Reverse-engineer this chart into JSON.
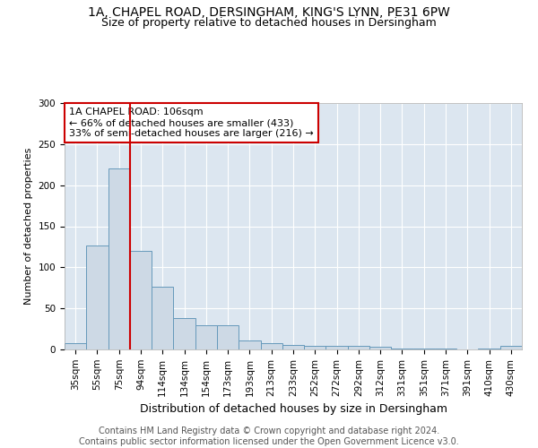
{
  "title_line1": "1A, CHAPEL ROAD, DERSINGHAM, KING'S LYNN, PE31 6PW",
  "title_line2": "Size of property relative to detached houses in Dersingham",
  "xlabel": "Distribution of detached houses by size in Dersingham",
  "ylabel": "Number of detached properties",
  "categories": [
    "35sqm",
    "55sqm",
    "75sqm",
    "94sqm",
    "114sqm",
    "134sqm",
    "154sqm",
    "173sqm",
    "193sqm",
    "213sqm",
    "233sqm",
    "252sqm",
    "272sqm",
    "292sqm",
    "312sqm",
    "331sqm",
    "351sqm",
    "371sqm",
    "391sqm",
    "410sqm",
    "430sqm"
  ],
  "values": [
    8,
    127,
    220,
    120,
    76,
    38,
    30,
    30,
    11,
    8,
    6,
    4,
    4,
    4,
    3,
    1,
    1,
    1,
    0,
    1,
    4
  ],
  "bar_color": "#cdd9e5",
  "bar_edge_color": "#6699bb",
  "vline_x_index": 2.5,
  "vline_color": "#cc0000",
  "annotation_text": "1A CHAPEL ROAD: 106sqm\n← 66% of detached houses are smaller (433)\n33% of semi-detached houses are larger (216) →",
  "annotation_box_color": "#ffffff",
  "annotation_box_edge_color": "#cc0000",
  "ylim": [
    0,
    300
  ],
  "yticks": [
    0,
    50,
    100,
    150,
    200,
    250,
    300
  ],
  "background_color": "#dce6f0",
  "footer_text": "Contains HM Land Registry data © Crown copyright and database right 2024.\nContains public sector information licensed under the Open Government Licence v3.0.",
  "title_fontsize": 10,
  "subtitle_fontsize": 9,
  "annotation_fontsize": 8,
  "footer_fontsize": 7,
  "ylabel_fontsize": 8,
  "xlabel_fontsize": 9,
  "tick_fontsize": 7.5
}
